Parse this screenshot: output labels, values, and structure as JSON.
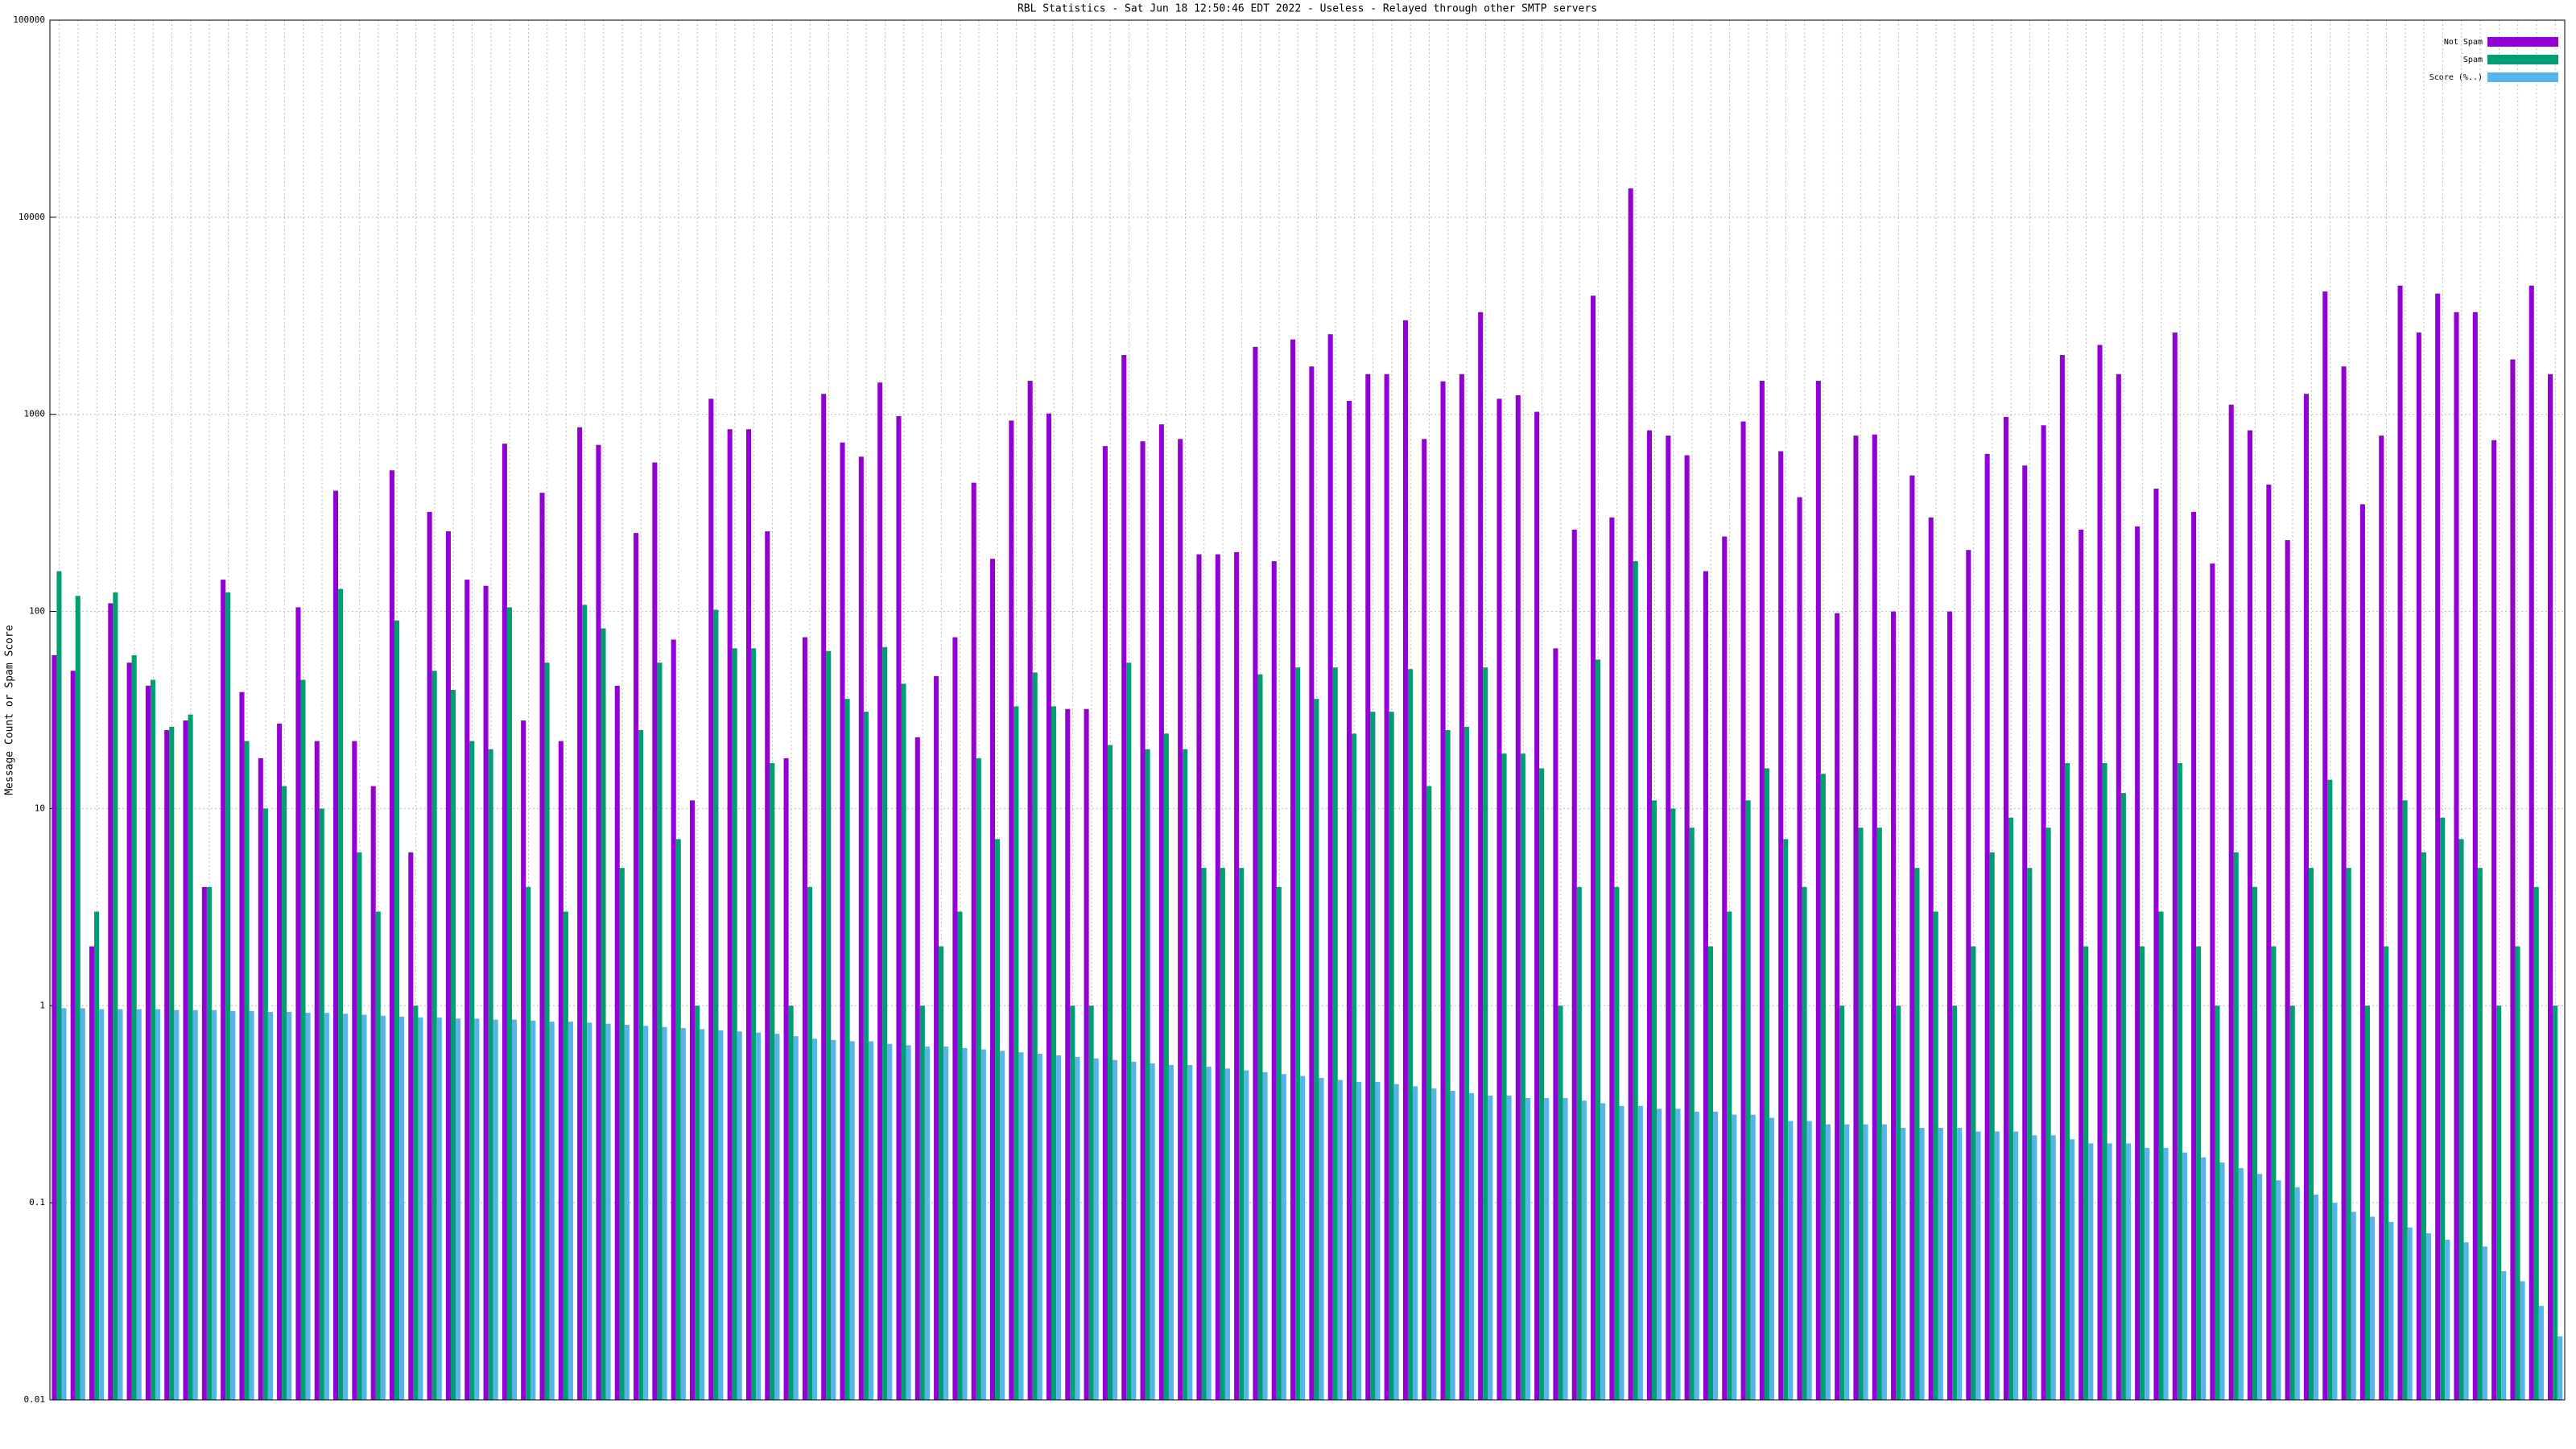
{
  "chart_data": {
    "type": "bar",
    "log_scale": true,
    "grid": true,
    "legend": "top-right",
    "title": "RBL Statistics - Sat Jun 18 12:50:46 EDT 2022 - Useless - Relayed through other SMTP servers",
    "y_label": "Message Count or Spam Score",
    "ylim": [
      0.01,
      100000
    ],
    "yticks": [
      0.01,
      0.1,
      1,
      10,
      100,
      1000,
      10000,
      100000
    ],
    "categories": [
      null,
      null,
      null,
      null,
      null,
      null,
      null,
      null,
      null,
      null,
      null,
      null,
      null,
      null,
      null,
      null,
      null,
      null,
      null,
      null,
      null,
      null,
      null,
      null,
      null,
      null,
      null,
      null,
      null,
      null,
      null,
      null,
      null,
      null,
      null,
      null,
      null,
      null,
      null,
      null,
      null,
      null,
      null,
      null,
      null,
      null,
      null,
      null,
      null,
      null,
      null,
      null,
      null,
      null,
      null,
      null,
      null,
      null,
      null,
      null,
      null,
      null,
      null,
      null,
      null,
      null,
      null,
      null,
      null,
      null,
      null,
      null,
      null,
      null,
      null,
      null,
      null,
      null,
      null,
      null,
      null,
      null,
      null,
      null,
      null,
      null,
      null,
      null,
      null,
      null,
      null,
      null,
      null,
      null,
      null,
      null,
      null,
      null,
      null,
      null,
      null,
      null,
      null,
      null,
      null,
      null,
      null,
      null,
      null,
      null,
      null,
      null,
      null,
      null,
      null,
      null,
      null,
      null,
      null,
      null,
      null,
      null,
      null,
      null,
      null,
      null,
      null,
      null,
      null,
      null,
      null,
      null,
      null,
      null
    ],
    "series": [
      {
        "name": "Not Spam",
        "color": "#9400d3",
        "values": [
          60,
          50,
          2,
          110,
          55,
          42,
          25,
          28,
          4,
          145,
          39,
          18,
          27,
          105,
          22,
          410,
          22,
          13,
          520,
          6,
          320,
          255,
          145,
          135,
          710,
          28,
          400,
          22,
          860,
          700,
          42,
          250,
          570,
          72,
          11,
          1200,
          840,
          840,
          255,
          18,
          74,
          1270,
          720,
          610,
          1450,
          980,
          23,
          47,
          74,
          450,
          185,
          930,
          1480,
          1010,
          32,
          32,
          690,
          2000,
          730,
          890,
          750,
          195,
          195,
          200,
          2200,
          180,
          2400,
          1750,
          2550,
          1170,
          1600,
          1600,
          3000,
          750,
          1470,
          1600,
          3300,
          1200,
          1250,
          1030,
          65,
          260,
          4000,
          300,
          14000,
          830,
          780,
          620,
          160,
          240,
          920,
          1480,
          650,
          380,
          1480,
          98,
          780,
          790,
          100,
          490,
          300,
          100,
          205,
          630,
          970,
          550,
          880,
          2000,
          260,
          2250,
          1600,
          270,
          420,
          2600,
          320,
          175,
          1120,
          830,
          440,
          230,
          1270,
          4200,
          1750,
          350,
          780,
          4500,
          2600,
          4100,
          3300,
          3300,
          740,
          1900,
          4500,
          1600
        ]
      },
      {
        "name": "Spam",
        "color": "#009e73",
        "values": [
          160,
          120,
          3,
          125,
          60,
          45,
          26,
          30,
          4,
          125,
          22,
          10,
          13,
          45,
          10,
          130,
          6,
          3,
          90,
          1,
          50,
          40,
          22,
          20,
          105,
          4,
          55,
          3,
          108,
          82,
          5,
          25,
          55,
          7,
          1,
          102,
          65,
          65,
          17,
          1,
          4,
          63,
          36,
          31,
          66,
          43,
          1,
          2,
          3,
          18,
          7,
          33,
          49,
          33,
          1,
          1,
          21,
          55,
          20,
          24,
          20,
          5,
          5,
          5,
          48,
          4,
          52,
          36,
          52,
          24,
          31,
          31,
          51,
          13,
          25,
          26,
          52,
          19,
          19,
          16,
          1,
          4,
          57,
          4,
          180,
          11,
          10,
          8,
          2,
          3,
          11,
          16,
          7,
          4,
          15,
          1,
          8,
          8,
          1,
          5,
          3,
          1,
          2,
          6,
          9,
          5,
          8,
          17,
          2,
          17,
          12,
          2,
          3,
          17,
          2,
          1,
          6,
          4,
          2,
          1,
          5,
          14,
          5,
          1,
          2,
          11,
          6,
          9,
          7,
          5,
          1,
          2,
          4,
          1
        ]
      },
      {
        "name": "Score (%..)",
        "color": "#56b4e9",
        "values": [
          0.97,
          0.97,
          0.96,
          0.96,
          0.96,
          0.96,
          0.95,
          0.95,
          0.95,
          0.94,
          0.94,
          0.93,
          0.93,
          0.92,
          0.92,
          0.91,
          0.9,
          0.89,
          0.88,
          0.87,
          0.87,
          0.86,
          0.86,
          0.85,
          0.85,
          0.84,
          0.83,
          0.83,
          0.82,
          0.81,
          0.8,
          0.79,
          0.78,
          0.77,
          0.76,
          0.75,
          0.74,
          0.73,
          0.72,
          0.7,
          0.68,
          0.67,
          0.66,
          0.66,
          0.64,
          0.63,
          0.62,
          0.62,
          0.61,
          0.6,
          0.59,
          0.58,
          0.57,
          0.56,
          0.55,
          0.54,
          0.53,
          0.52,
          0.51,
          0.5,
          0.5,
          0.49,
          0.48,
          0.47,
          0.46,
          0.45,
          0.44,
          0.43,
          0.42,
          0.41,
          0.41,
          0.4,
          0.39,
          0.38,
          0.37,
          0.36,
          0.35,
          0.35,
          0.34,
          0.34,
          0.34,
          0.33,
          0.32,
          0.31,
          0.31,
          0.3,
          0.3,
          0.29,
          0.29,
          0.28,
          0.28,
          0.27,
          0.26,
          0.26,
          0.25,
          0.25,
          0.25,
          0.25,
          0.24,
          0.24,
          0.24,
          0.24,
          0.23,
          0.23,
          0.23,
          0.22,
          0.22,
          0.21,
          0.2,
          0.2,
          0.2,
          0.19,
          0.19,
          0.18,
          0.17,
          0.16,
          0.15,
          0.14,
          0.13,
          0.12,
          0.11,
          0.1,
          0.09,
          0.085,
          0.08,
          0.075,
          0.07,
          0.065,
          0.063,
          0.06,
          0.045,
          0.04,
          0.03,
          0.021
        ]
      }
    ]
  }
}
